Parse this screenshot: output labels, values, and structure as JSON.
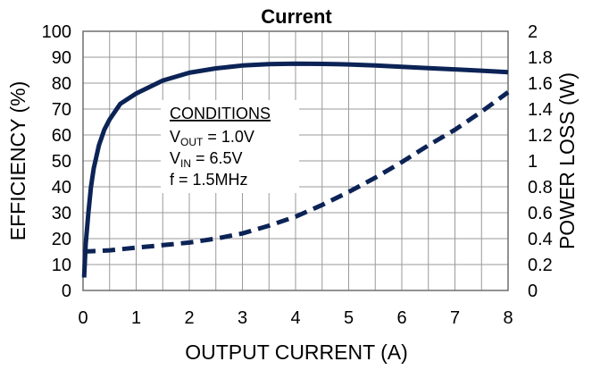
{
  "chart_data": {
    "type": "line",
    "title": "Current",
    "xlabel": "OUTPUT CURRENT (A)",
    "ylabel": "EFFICIENCY (%)",
    "y2label": "POWER LOSS (W)",
    "xlim": [
      0,
      8
    ],
    "ylim": [
      0,
      100
    ],
    "y2lim": [
      0,
      2
    ],
    "xticks": [
      "0",
      "1",
      "2",
      "3",
      "4",
      "5",
      "6",
      "7",
      "8"
    ],
    "yticks": [
      "0",
      "10",
      "20",
      "30",
      "40",
      "50",
      "60",
      "70",
      "80",
      "90",
      "100"
    ],
    "y2ticks": [
      "0",
      "0.2",
      "0.4",
      "0.6",
      "0.8",
      "1",
      "1.2",
      "1.4",
      "1.6",
      "1.8",
      "2"
    ],
    "grid": true,
    "series": [
      {
        "axis": "left",
        "style": "solid",
        "color": "#0c2356",
        "x": [
          0.02,
          0.05,
          0.1,
          0.15,
          0.2,
          0.3,
          0.4,
          0.5,
          0.7,
          1.0,
          1.5,
          2.0,
          2.5,
          3.0,
          3.5,
          4.0,
          4.5,
          5.0,
          5.5,
          6.0,
          6.5,
          7.0,
          7.5,
          8.0
        ],
        "y": [
          5,
          18,
          30,
          40,
          47,
          56,
          62,
          66,
          72,
          76,
          81,
          84,
          85.7,
          86.8,
          87.3,
          87.5,
          87.4,
          87.2,
          86.8,
          86.3,
          85.8,
          85.3,
          84.8,
          84.2
        ]
      },
      {
        "axis": "right",
        "style": "dashed",
        "color": "#0c2356",
        "x": [
          0.0,
          0.5,
          1.0,
          1.5,
          2.0,
          2.5,
          3.0,
          3.5,
          4.0,
          4.5,
          5.0,
          5.5,
          6.0,
          6.5,
          7.0,
          7.5,
          8.0
        ],
        "y": [
          0.3,
          0.31,
          0.33,
          0.35,
          0.37,
          0.4,
          0.44,
          0.5,
          0.57,
          0.66,
          0.76,
          0.87,
          0.99,
          1.12,
          1.24,
          1.38,
          1.53
        ]
      }
    ],
    "annotation": {
      "heading": "CONDITIONS",
      "lines": [
        {
          "main": "V",
          "sub": "OUT",
          "rest": " = 1.0V"
        },
        {
          "main": "V",
          "sub": "IN",
          "rest": " = 6.5V"
        },
        {
          "main": "f = 1.5MHz",
          "sub": "",
          "rest": ""
        }
      ]
    }
  }
}
